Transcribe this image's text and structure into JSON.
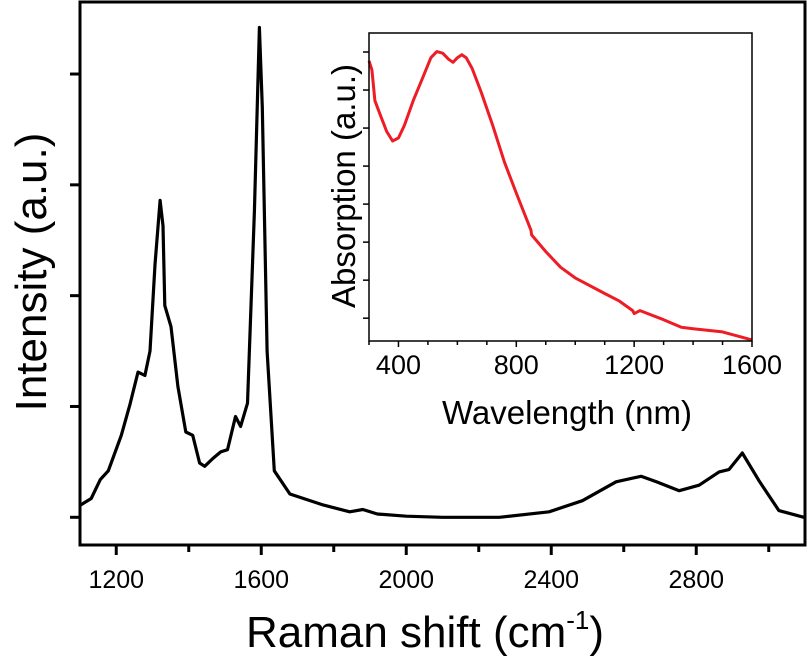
{
  "chart_data": [
    {
      "type": "line",
      "panel": "main",
      "title": "",
      "xlabel": "Raman shift (cm",
      "xlabel_superscript": "-1",
      "xlabel_suffix": ")",
      "ylabel": "Intensity (a.u.)",
      "xlim": [
        1100,
        3100
      ],
      "ylim": [
        -0.25,
        4.65
      ],
      "xticks": [
        1200,
        1600,
        2000,
        2400,
        2800
      ],
      "xticks_minor": [
        1400,
        1800,
        2200,
        2600,
        3000
      ],
      "xtick_labels": [
        "1200",
        "1600",
        "2000",
        "2400",
        "2800"
      ],
      "yticks": [
        0,
        1,
        2,
        3,
        4
      ],
      "ytick_labels_shown": false,
      "grid": false,
      "line_color": "#000000",
      "series": [
        {
          "x": [
            1101,
            1131,
            1156,
            1178,
            1214,
            1238,
            1260,
            1279,
            1293,
            1307,
            1321,
            1329,
            1334,
            1351,
            1370,
            1392,
            1411,
            1430,
            1444,
            1466,
            1488,
            1507,
            1529,
            1543,
            1562,
            1581,
            1595,
            1603,
            1616,
            1636,
            1679,
            1772,
            1844,
            1880,
            1920,
            2000,
            2100,
            2257,
            2394,
            2486,
            2579,
            2648,
            2690,
            2753,
            2808,
            2863,
            2890,
            2927,
            2973,
            3028,
            3097
          ],
          "y": [
            0.11,
            0.17,
            0.34,
            0.42,
            0.74,
            1.02,
            1.31,
            1.28,
            1.5,
            2.28,
            2.86,
            2.63,
            1.91,
            1.72,
            1.18,
            0.77,
            0.74,
            0.49,
            0.46,
            0.53,
            0.59,
            0.61,
            0.91,
            0.82,
            1.03,
            2.76,
            4.42,
            3.7,
            1.5,
            0.42,
            0.21,
            0.11,
            0.05,
            0.07,
            0.03,
            0.01,
            0.0,
            0.0,
            0.05,
            0.15,
            0.32,
            0.37,
            0.32,
            0.24,
            0.29,
            0.41,
            0.43,
            0.58,
            0.33,
            0.06,
            0.0
          ]
        }
      ]
    },
    {
      "type": "line",
      "panel": "inset",
      "title": "",
      "xlabel": "Wavelength (nm)",
      "ylabel": "Absorption (a.u.)",
      "xlim": [
        300,
        1600
      ],
      "ylim": [
        -0.6,
        7.5
      ],
      "xticks": [
        400,
        800,
        1200,
        1600
      ],
      "xticks_minor": [
        300,
        500,
        600,
        700,
        900,
        1000,
        1100,
        1300,
        1400,
        1500
      ],
      "xtick_labels": [
        "400",
        "800",
        "1200",
        "1600"
      ],
      "yticks": [
        0,
        1,
        2,
        3,
        4,
        5,
        6,
        7
      ],
      "ytick_labels_shown": false,
      "grid": false,
      "line_color": "#ee1c25",
      "series": [
        {
          "x": [
            300,
            310,
            320,
            340,
            360,
            380,
            400,
            420,
            450,
            480,
            510,
            530,
            550,
            570,
            585,
            600,
            615,
            630,
            650,
            680,
            720,
            760,
            800,
            850,
            852,
            900,
            950,
            1000,
            1100,
            1150,
            1195,
            1200,
            1220,
            1300,
            1360,
            1400,
            1500,
            1600
          ],
          "y": [
            6.77,
            6.53,
            5.72,
            5.31,
            4.91,
            4.66,
            4.74,
            5.07,
            5.72,
            6.28,
            6.85,
            7.01,
            6.97,
            6.81,
            6.73,
            6.85,
            6.93,
            6.85,
            6.57,
            5.96,
            5.07,
            4.1,
            3.29,
            2.31,
            2.19,
            1.75,
            1.34,
            1.06,
            0.65,
            0.45,
            0.2,
            0.12,
            0.2,
            -0.04,
            -0.24,
            -0.28,
            -0.36,
            -0.57
          ]
        }
      ]
    }
  ]
}
